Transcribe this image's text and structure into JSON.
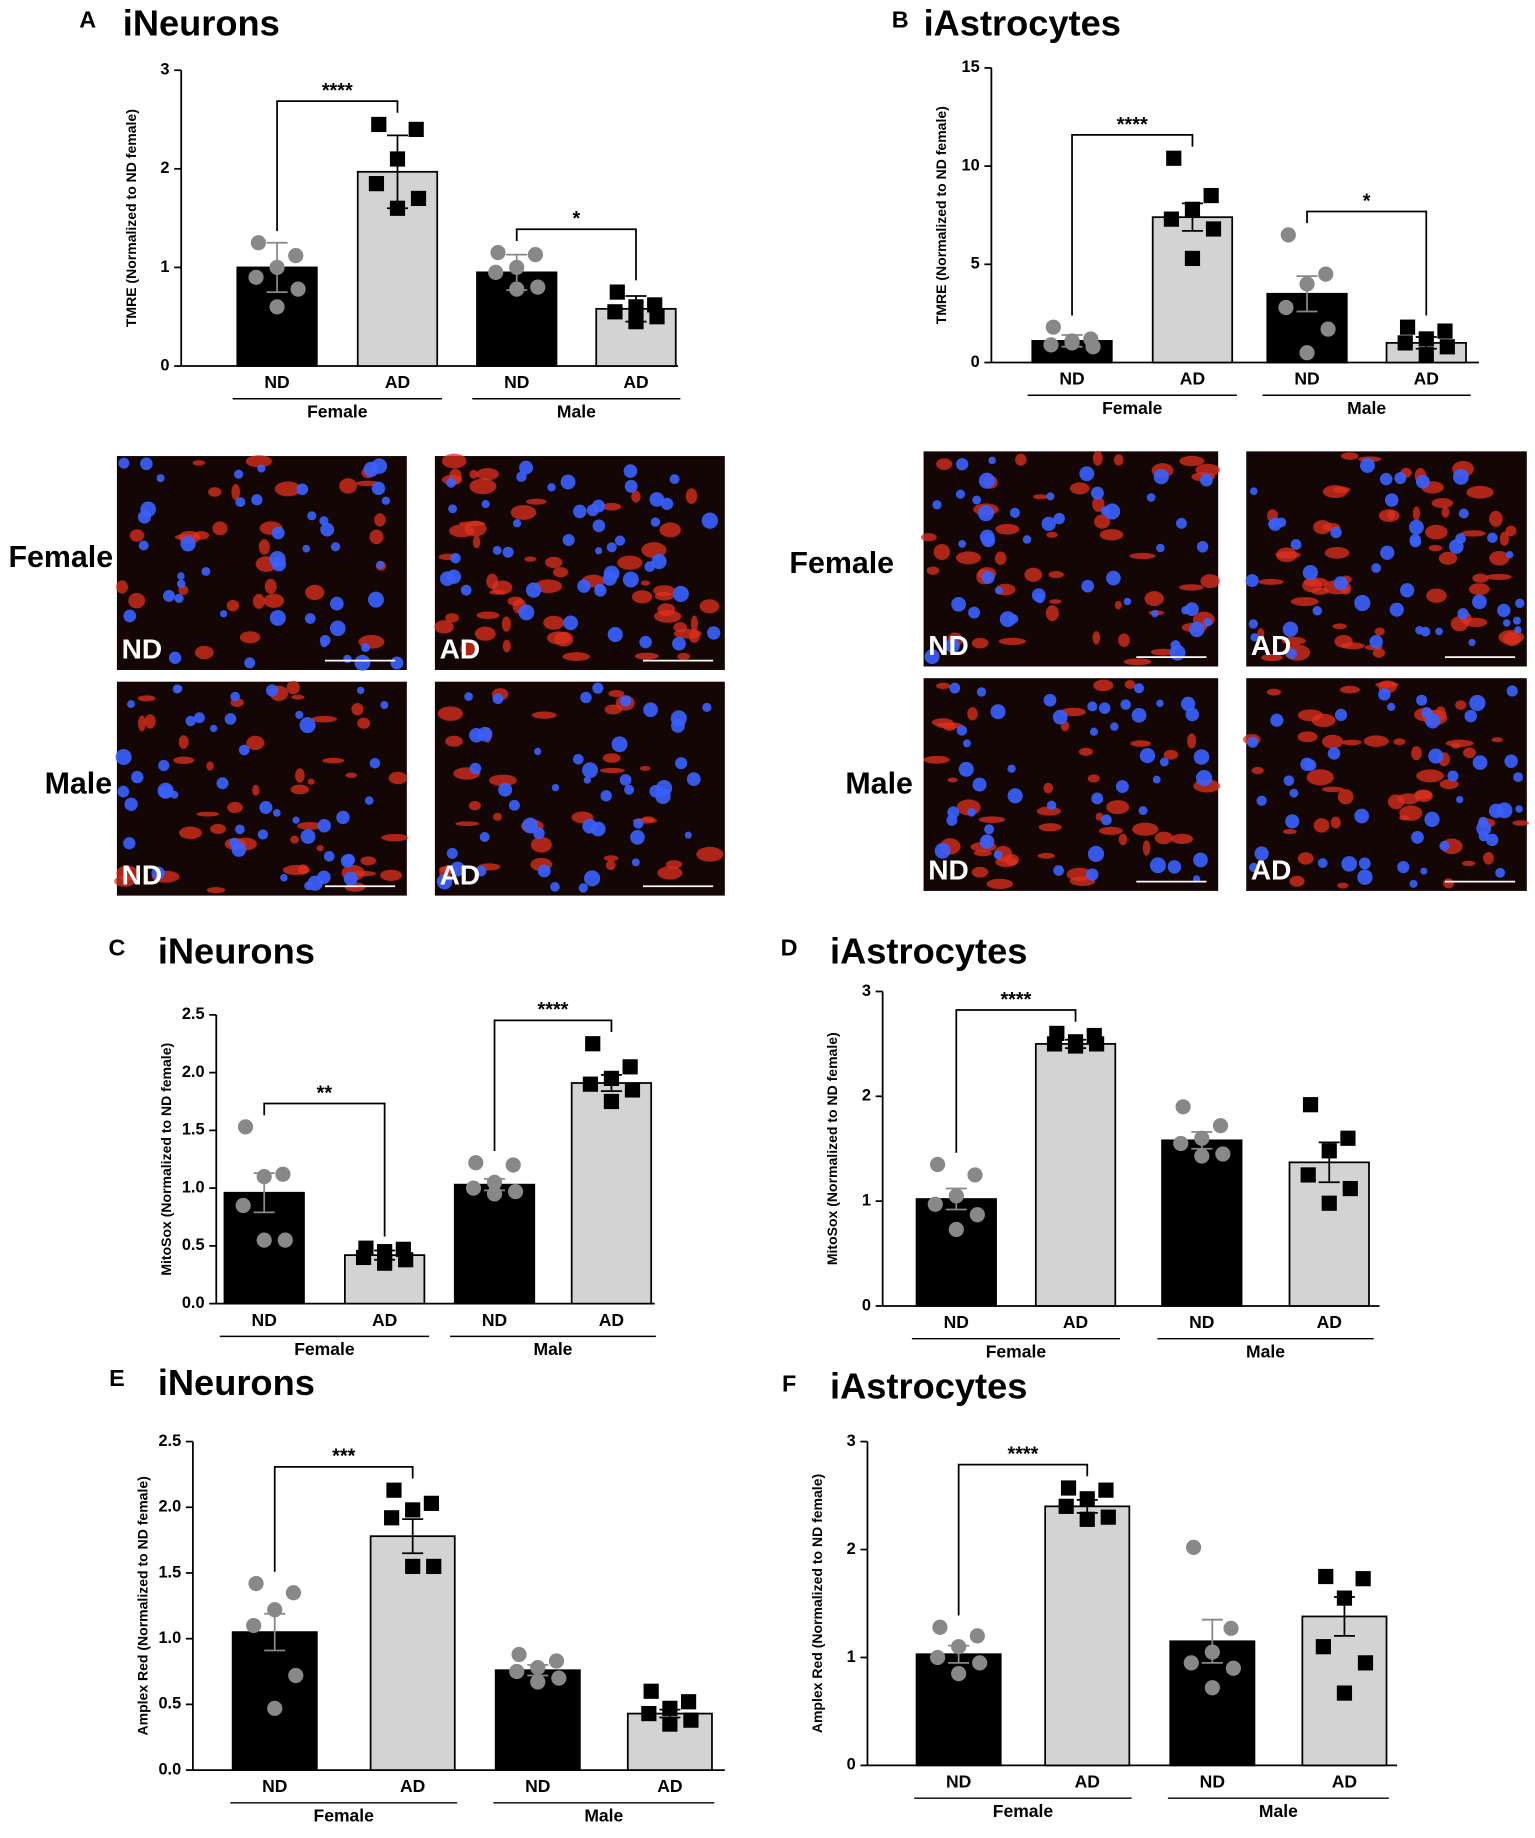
{
  "chart_data": [
    {
      "type": "bar",
      "panel": "A",
      "title": "iNeurons",
      "y_label": "TMRE (Normalized to ND female)",
      "ylim": [
        0,
        3
      ],
      "yticks": [
        0,
        1,
        2,
        3
      ],
      "groups": [
        {
          "name": "Female",
          "significance": "****",
          "bars": [
            {
              "category": "ND",
              "value": 1.0,
              "error": 0.25,
              "color": "#000000",
              "point_color": "#888888",
              "point_shape": "circle",
              "points": [
                1.25,
                1.12,
                1.0,
                0.9,
                0.78,
                0.6
              ]
            },
            {
              "category": "AD",
              "value": 1.97,
              "error": 0.37,
              "color": "#d3d3d3",
              "point_color": "#000000",
              "point_shape": "square",
              "points": [
                2.45,
                2.4,
                2.1,
                1.85,
                1.7,
                1.6
              ]
            }
          ]
        },
        {
          "name": "Male",
          "significance": "*",
          "bars": [
            {
              "category": "ND",
              "value": 0.95,
              "error": 0.18,
              "color": "#000000",
              "point_color": "#888888",
              "point_shape": "circle",
              "points": [
                1.15,
                1.13,
                1.0,
                0.95,
                0.8,
                0.78
              ]
            },
            {
              "category": "AD",
              "value": 0.58,
              "error": 0.13,
              "color": "#d3d3d3",
              "point_color": "#000000",
              "point_shape": "square",
              "points": [
                0.75,
                0.62,
                0.6,
                0.55,
                0.5,
                0.45
              ]
            }
          ]
        }
      ]
    },
    {
      "type": "bar",
      "panel": "B",
      "title": "iAstrocytes",
      "y_label": "TMRE (Normalized to ND female)",
      "ylim": [
        0,
        15
      ],
      "yticks": [
        0,
        5,
        10,
        15
      ],
      "groups": [
        {
          "name": "Female",
          "significance": "****",
          "bars": [
            {
              "category": "ND",
              "value": 1.1,
              "error": 0.3,
              "color": "#000000",
              "point_color": "#888888",
              "point_shape": "circle",
              "points": [
                1.8,
                1.2,
                1.0,
                0.9,
                0.8,
                1.1
              ]
            },
            {
              "category": "AD",
              "value": 7.4,
              "error": 0.7,
              "color": "#d3d3d3",
              "point_color": "#000000",
              "point_shape": "square",
              "points": [
                10.4,
                8.5,
                7.8,
                7.3,
                6.8,
                5.3
              ]
            }
          ]
        },
        {
          "name": "Male",
          "significance": "*",
          "bars": [
            {
              "category": "ND",
              "value": 3.5,
              "error": 0.9,
              "color": "#000000",
              "point_color": "#888888",
              "point_shape": "circle",
              "points": [
                6.5,
                4.5,
                4.0,
                2.8,
                1.7,
                0.5
              ]
            },
            {
              "category": "AD",
              "value": 1.0,
              "error": 0.3,
              "color": "#d3d3d3",
              "point_color": "#000000",
              "point_shape": "square",
              "points": [
                1.8,
                1.6,
                1.2,
                1.0,
                0.8,
                0.4
              ]
            }
          ]
        }
      ]
    },
    {
      "type": "bar",
      "panel": "C",
      "title": "iNeurons",
      "y_label": "MitoSox (Normalized to ND female)",
      "ylim": [
        0,
        2.5
      ],
      "yticks": [
        {
          "value": 0,
          "label": "0.0"
        },
        0.5,
        {
          "value": 1,
          "label": "1.0"
        },
        1.5,
        {
          "value": 2,
          "label": "2.0"
        },
        2.5
      ],
      "groups": [
        {
          "name": "Female",
          "significance": "**",
          "bars": [
            {
              "category": "ND",
              "value": 0.96,
              "error": 0.17,
              "color": "#000000",
              "point_color": "#888888",
              "point_shape": "circle",
              "points": [
                1.53,
                1.12,
                1.1,
                0.85,
                0.55,
                0.55
              ]
            },
            {
              "category": "AD",
              "value": 0.42,
              "error": 0.04,
              "color": "#d3d3d3",
              "point_color": "#000000",
              "point_shape": "square",
              "points": [
                0.48,
                0.47,
                0.45,
                0.4,
                0.38,
                0.35
              ]
            }
          ]
        },
        {
          "name": "Male",
          "significance": "****",
          "bars": [
            {
              "category": "ND",
              "value": 1.03,
              "error": 0.05,
              "color": "#000000",
              "point_color": "#888888",
              "point_shape": "circle",
              "points": [
                1.22,
                1.2,
                1.05,
                1.0,
                0.97,
                0.95
              ]
            },
            {
              "category": "AD",
              "value": 1.91,
              "error": 0.07,
              "color": "#d3d3d3",
              "point_color": "#000000",
              "point_shape": "square",
              "points": [
                2.25,
                2.05,
                1.95,
                1.9,
                1.85,
                1.75
              ]
            }
          ]
        }
      ]
    },
    {
      "type": "bar",
      "panel": "D",
      "title": "iAstrocytes",
      "y_label": "MitoSox (Normalized to ND female)",
      "ylim": [
        0,
        3
      ],
      "yticks": [
        0,
        1,
        2,
        3
      ],
      "groups": [
        {
          "name": "Female",
          "significance": "****",
          "bars": [
            {
              "category": "ND",
              "value": 1.02,
              "error": 0.1,
              "color": "#000000",
              "point_color": "#888888",
              "point_shape": "circle",
              "points": [
                1.35,
                1.25,
                1.05,
                0.97,
                0.87,
                0.73
              ]
            },
            {
              "category": "AD",
              "value": 2.5,
              "error": 0.04,
              "color": "#d3d3d3",
              "point_color": "#000000",
              "point_shape": "square",
              "points": [
                2.6,
                2.58,
                2.52,
                2.5,
                2.5,
                2.48
              ]
            }
          ]
        },
        {
          "name": "Male",
          "bars": [
            {
              "category": "ND",
              "value": 1.58,
              "error": 0.08,
              "color": "#000000",
              "point_color": "#888888",
              "point_shape": "circle",
              "points": [
                1.9,
                1.72,
                1.6,
                1.55,
                1.45,
                1.43
              ]
            },
            {
              "category": "AD",
              "value": 1.37,
              "error": 0.19,
              "color": "#d3d3d3",
              "point_color": "#000000",
              "point_shape": "square",
              "points": [
                1.92,
                1.6,
                1.48,
                1.25,
                1.12,
                0.98
              ]
            }
          ]
        }
      ]
    },
    {
      "type": "bar",
      "panel": "E",
      "title": "iNeurons",
      "y_label": "Amplex Red (Normalized to ND female)",
      "ylim": [
        0,
        2.5
      ],
      "yticks": [
        {
          "value": 0,
          "label": "0.0"
        },
        0.5,
        {
          "value": 1,
          "label": "1.0"
        },
        1.5,
        {
          "value": 2,
          "label": "2.0"
        },
        2.5
      ],
      "groups": [
        {
          "name": "Female",
          "significance": "***",
          "bars": [
            {
              "category": "ND",
              "value": 1.05,
              "error": 0.14,
              "color": "#000000",
              "point_color": "#888888",
              "point_shape": "circle",
              "points": [
                1.42,
                1.35,
                1.22,
                1.1,
                0.72,
                0.47
              ]
            },
            {
              "category": "AD",
              "value": 1.78,
              "error": 0.13,
              "color": "#d3d3d3",
              "point_color": "#000000",
              "point_shape": "square",
              "points": [
                2.13,
                2.03,
                1.98,
                1.92,
                1.55,
                1.55
              ]
            }
          ]
        },
        {
          "name": "Male",
          "bars": [
            {
              "category": "ND",
              "value": 0.76,
              "error": 0.04,
              "color": "#000000",
              "point_color": "#888888",
              "point_shape": "circle",
              "points": [
                0.88,
                0.83,
                0.78,
                0.75,
                0.7,
                0.67
              ]
            },
            {
              "category": "AD",
              "value": 0.43,
              "error": 0.03,
              "color": "#d3d3d3",
              "point_color": "#000000",
              "point_shape": "square",
              "points": [
                0.6,
                0.52,
                0.47,
                0.43,
                0.38,
                0.35
              ]
            }
          ]
        }
      ]
    },
    {
      "type": "bar",
      "panel": "F",
      "title": "iAstrocytes",
      "y_label": "Amplex Red (Normalized to ND female)",
      "ylim": [
        0,
        3
      ],
      "yticks": [
        0,
        1,
        2,
        3
      ],
      "groups": [
        {
          "name": "Female",
          "significance": "****",
          "bars": [
            {
              "category": "ND",
              "value": 1.03,
              "error": 0.08,
              "color": "#000000",
              "point_color": "#888888",
              "point_shape": "circle",
              "points": [
                1.28,
                1.2,
                1.1,
                1.0,
                0.95,
                0.85
              ]
            },
            {
              "category": "AD",
              "value": 2.4,
              "error": 0.06,
              "color": "#d3d3d3",
              "point_color": "#000000",
              "point_shape": "square",
              "points": [
                2.57,
                2.55,
                2.47,
                2.4,
                2.3,
                2.28
              ]
            }
          ]
        },
        {
          "name": "Male",
          "bars": [
            {
              "category": "ND",
              "value": 1.15,
              "error": 0.2,
              "color": "#000000",
              "point_color": "#888888",
              "point_shape": "circle",
              "points": [
                2.02,
                1.27,
                1.05,
                0.95,
                0.9,
                0.72
              ]
            },
            {
              "category": "AD",
              "value": 1.38,
              "error": 0.18,
              "color": "#d3d3d3",
              "point_color": "#000000",
              "point_shape": "square",
              "points": [
                1.75,
                1.73,
                1.55,
                1.1,
                0.95,
                0.67
              ]
            }
          ]
        }
      ]
    }
  ],
  "micrographs": [
    {
      "panel": "A",
      "rows": [
        {
          "label": "Female",
          "images": [
            "ND",
            "AD"
          ]
        },
        {
          "label": "Male",
          "images": [
            "ND",
            "AD"
          ]
        }
      ]
    },
    {
      "panel": "B",
      "rows": [
        {
          "label": "Female",
          "images": [
            "ND",
            "AD"
          ]
        },
        {
          "label": "Male",
          "images": [
            "ND",
            "AD"
          ]
        }
      ]
    }
  ]
}
